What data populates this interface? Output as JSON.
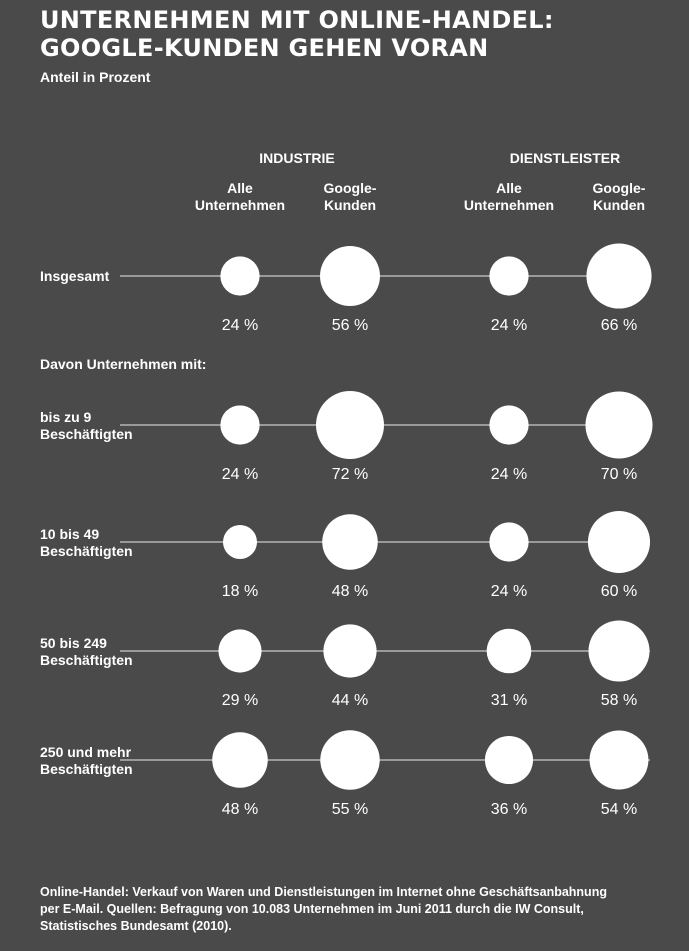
{
  "header": {
    "title_line1": "UNTERNEHMEN MIT ONLINE-HANDEL:",
    "title_line2": "GOOGLE-KUNDEN GEHEN VORAN",
    "subtitle": "Anteil in Prozent"
  },
  "footnote": {
    "line1": "Online-Handel: Verkauf von Waren und Dienstleistungen im Internet ohne Geschäftsanbahnung",
    "line2": "per E-Mail. Quellen: Befragung von 10.083 Unternehmen im Juni 2011 durch die IW Consult,",
    "line3": "Statistisches Bundesamt (2010)."
  },
  "colors": {
    "background": "#4a4a4b",
    "bubble": "#ffffff",
    "line": "#9a9a9a",
    "text": "#ffffff"
  },
  "chart_data": {
    "type": "bubble",
    "groups": [
      "INDUSTRIE",
      "DIENSTLEISTER"
    ],
    "columns": [
      {
        "group": "INDUSTRIE",
        "line1": "Alle",
        "line2": "Unternehmen"
      },
      {
        "group": "INDUSTRIE",
        "line1": "Google-",
        "line2": "Kunden"
      },
      {
        "group": "DIENSTLEISTER",
        "line1": "Alle",
        "line2": "Unternehmen"
      },
      {
        "group": "DIENSTLEISTER",
        "line1": "Google-",
        "line2": "Kunden"
      }
    ],
    "section_label": "Davon Unternehmen mit:",
    "rows": [
      {
        "label": [
          "Insgesamt"
        ],
        "values": [
          24,
          56,
          24,
          66
        ],
        "value_labels": [
          "24 %",
          "56 %",
          "24 %",
          "66 %"
        ]
      },
      {
        "label": [
          "bis zu 9",
          "Beschäftigten"
        ],
        "values": [
          24,
          72,
          24,
          70
        ],
        "value_labels": [
          "24 %",
          "72 %",
          "24 %",
          "70 %"
        ]
      },
      {
        "label": [
          "10 bis 49",
          "Beschäftigten"
        ],
        "values": [
          18,
          48,
          24,
          60
        ],
        "value_labels": [
          "18 %",
          "48 %",
          "24 %",
          "60 %"
        ]
      },
      {
        "label": [
          "50 bis 249",
          "Beschäftigten"
        ],
        "values": [
          29,
          44,
          31,
          58
        ],
        "value_labels": [
          "29 %",
          "44 %",
          "31 %",
          "58 %"
        ]
      },
      {
        "label": [
          "250 und mehr",
          "Beschäftigten"
        ],
        "values": [
          48,
          55,
          36,
          54
        ],
        "value_labels": [
          "48 %",
          "55 %",
          "36 %",
          "54 %"
        ]
      }
    ]
  }
}
